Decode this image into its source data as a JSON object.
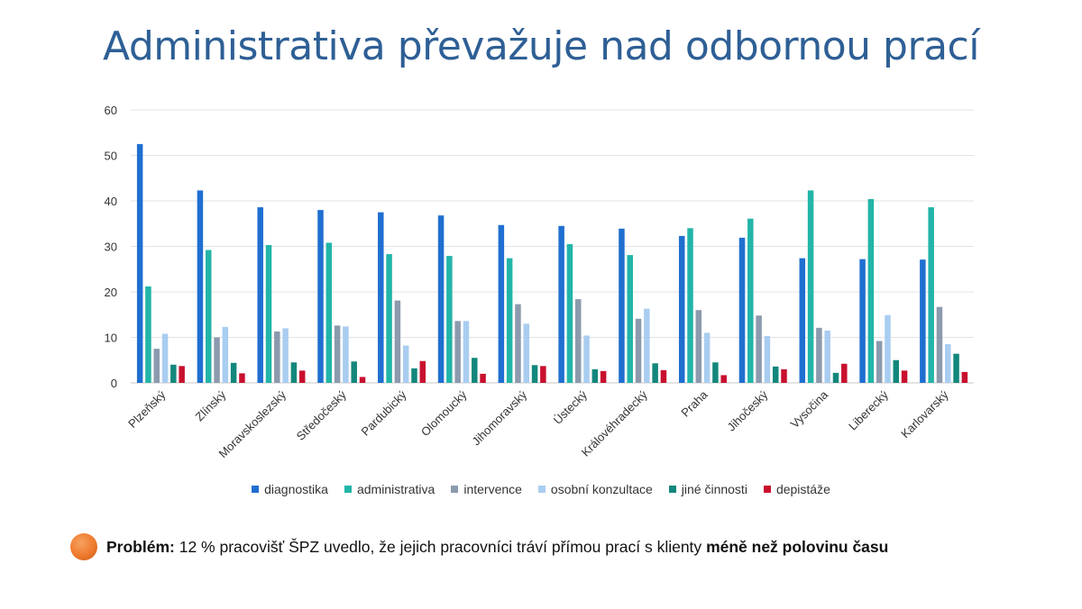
{
  "slide": {
    "title": "Administrativa převažuje nad odbornou prací"
  },
  "note": {
    "label": "Problém:",
    "text": "12 % pracovišť ŠPZ uvedlo, že jejich pracovníci tráví přímou prací s klienty",
    "emphasis": "méně než polovinu času"
  },
  "chart_data": {
    "type": "bar",
    "title": "",
    "xlabel": "",
    "ylabel": "",
    "ylim": [
      0,
      60
    ],
    "yticks": [
      0,
      10,
      20,
      30,
      40,
      50,
      60
    ],
    "grid": true,
    "legend_position": "bottom",
    "categories": [
      "Plzeňský",
      "Zlínský",
      "Moravskoslezský",
      "Středočeský",
      "Pardubický",
      "Olomoucký",
      "Jihomoravský",
      "Ústecký",
      "Královéhradecký",
      "Praha",
      "Jihočeský",
      "Vysočina",
      "Liberecký",
      "Karlovarský"
    ],
    "series": [
      {
        "name": "diagnostika",
        "color": "#1f6fd0",
        "values": [
          52.5,
          42.3,
          38.6,
          38.0,
          37.5,
          36.8,
          34.7,
          34.5,
          33.9,
          32.3,
          31.9,
          27.4,
          27.2,
          27.1
        ]
      },
      {
        "name": "administrativa",
        "color": "#22b5a8",
        "values": [
          21.2,
          29.2,
          30.3,
          30.8,
          28.3,
          27.9,
          27.4,
          30.5,
          28.1,
          34.0,
          36.1,
          42.3,
          40.4,
          38.6
        ]
      },
      {
        "name": "intervence",
        "color": "#8c9aae",
        "values": [
          7.5,
          10.0,
          11.3,
          12.6,
          18.1,
          13.6,
          17.3,
          18.4,
          14.1,
          16.0,
          14.8,
          12.1,
          9.2,
          16.7
        ]
      },
      {
        "name": "osobní konzultace",
        "color": "#a9cdf0",
        "values": [
          10.8,
          12.3,
          12.0,
          12.4,
          8.2,
          13.6,
          13.0,
          10.4,
          16.3,
          11.0,
          10.3,
          11.5,
          14.9,
          8.5
        ]
      },
      {
        "name": "jiné činnosti",
        "color": "#13877c",
        "values": [
          4.0,
          4.4,
          4.5,
          4.7,
          3.2,
          5.5,
          3.9,
          3.0,
          4.3,
          4.5,
          3.6,
          2.2,
          5.0,
          6.4
        ]
      },
      {
        "name": "depistáže",
        "color": "#c8102e",
        "values": [
          3.7,
          2.1,
          2.7,
          1.3,
          4.8,
          2.0,
          3.7,
          2.6,
          2.8,
          1.7,
          3.0,
          4.2,
          2.7,
          2.4
        ]
      }
    ]
  }
}
